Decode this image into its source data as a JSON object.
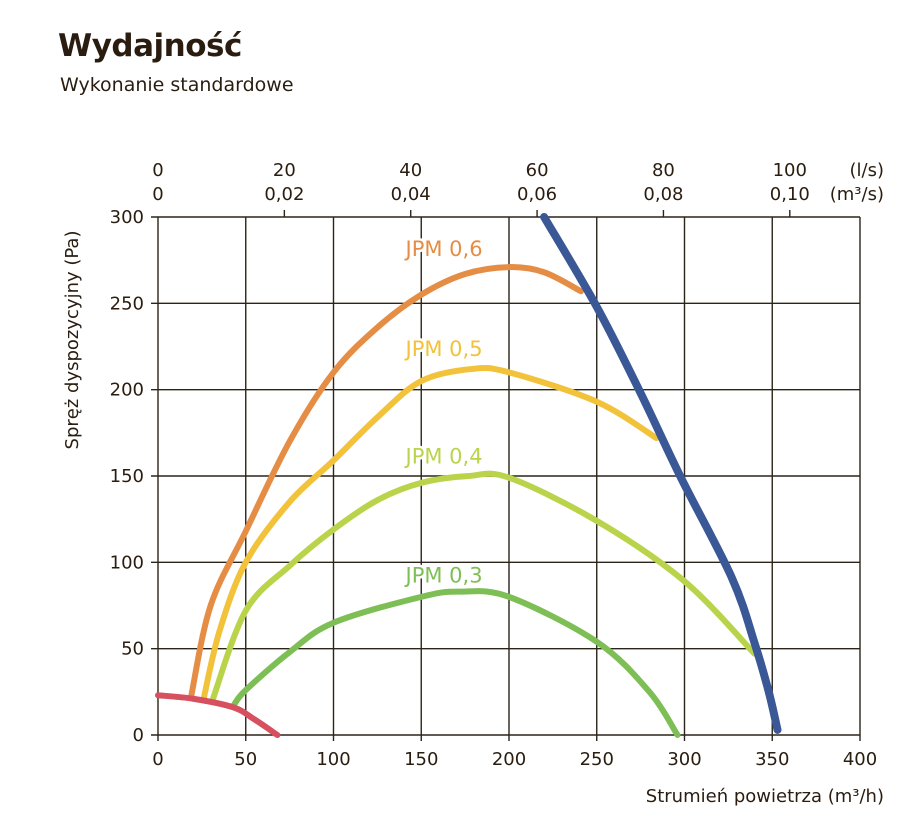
{
  "title": "Wydajność",
  "subtitle": "Wykonanie standardowe",
  "chart_data": {
    "type": "line",
    "title": "Wydajność",
    "subtitle": "Wykonanie standardowe",
    "xlabel": "Strumień powietrza (m³/h)",
    "ylabel": "Spręż dyspozycyjny (Pa)",
    "xlim": [
      0,
      400
    ],
    "ylim": [
      0,
      300
    ],
    "grid": true,
    "x_ticks": [
      "0",
      "50",
      "100",
      "150",
      "200",
      "250",
      "300",
      "350",
      "400"
    ],
    "y_ticks": [
      "0",
      "50",
      "100",
      "150",
      "200",
      "250",
      "300"
    ],
    "top_axis": {
      "unit_ls": "(l/s)",
      "unit_m3s": "(m³/s)",
      "ticks_ls": [
        "0",
        "20",
        "40",
        "60",
        "80",
        "100"
      ],
      "ticks_m3s": [
        "0",
        "0,02",
        "0,04",
        "0,06",
        "0,08",
        "0,10"
      ],
      "ls_values": [
        0,
        20,
        40,
        60,
        80,
        100
      ]
    },
    "series": [
      {
        "name": "JPM 0,6",
        "color": "#E58D45",
        "label_at": [
          163,
          282
        ],
        "points": [
          [
            19,
            23
          ],
          [
            30,
            75
          ],
          [
            50,
            118
          ],
          [
            75,
            170
          ],
          [
            100,
            210
          ],
          [
            125,
            236
          ],
          [
            150,
            255
          ],
          [
            175,
            267
          ],
          [
            200,
            271
          ],
          [
            220,
            268
          ],
          [
            241,
            257
          ]
        ]
      },
      {
        "name": "JPM 0,5",
        "color": "#F2C23A",
        "label_at": [
          163,
          224
        ],
        "points": [
          [
            26,
            21
          ],
          [
            35,
            60
          ],
          [
            50,
            100
          ],
          [
            75,
            135
          ],
          [
            100,
            159
          ],
          [
            125,
            184
          ],
          [
            150,
            205
          ],
          [
            179,
            212
          ],
          [
            200,
            210
          ],
          [
            250,
            193
          ],
          [
            284,
            172
          ]
        ]
      },
      {
        "name": "JPM 0,4",
        "color": "#B9D44A",
        "label_at": [
          163,
          162
        ],
        "points": [
          [
            31,
            20
          ],
          [
            50,
            72
          ],
          [
            75,
            98
          ],
          [
            100,
            119
          ],
          [
            125,
            136
          ],
          [
            150,
            146
          ],
          [
            177,
            150
          ],
          [
            200,
            149
          ],
          [
            250,
            124
          ],
          [
            300,
            89
          ],
          [
            340,
            47
          ]
        ]
      },
      {
        "name": "JPM 0,3",
        "color": "#7DBE55",
        "label_at": [
          163,
          93
        ],
        "points": [
          [
            43,
            17
          ],
          [
            50,
            26
          ],
          [
            75,
            48
          ],
          [
            100,
            65
          ],
          [
            150,
            80
          ],
          [
            172,
            83
          ],
          [
            200,
            80
          ],
          [
            250,
            54
          ],
          [
            280,
            25
          ],
          [
            296,
            0
          ]
        ]
      },
      {
        "name": "",
        "color": "#D6505F",
        "points": [
          [
            0,
            23
          ],
          [
            20,
            21
          ],
          [
            43,
            16
          ],
          [
            55,
            9
          ],
          [
            68,
            0
          ]
        ]
      },
      {
        "name": "",
        "color": "#3A5896",
        "points": [
          [
            220,
            300
          ],
          [
            250,
            248
          ],
          [
            275,
            198
          ],
          [
            298,
            149
          ],
          [
            327,
            91
          ],
          [
            340,
            53
          ],
          [
            348,
            25
          ],
          [
            353,
            3
          ]
        ]
      }
    ]
  }
}
